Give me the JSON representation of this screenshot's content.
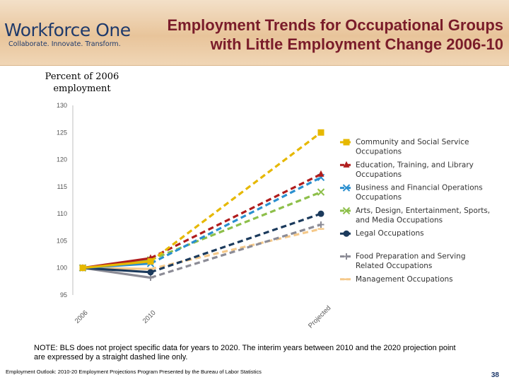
{
  "header": {
    "logo_text": "Workforce One",
    "logo_tagline": "Collaborate. Innovate. Transform.",
    "title_line1": "Employment Trends for Occupational Groups",
    "title_line2": "with Little Employment Change 2006-10"
  },
  "chart_data": {
    "type": "line",
    "title": "Employment Trends for Occupational Groups with Little Employment Change 2006-10",
    "ylabel": "Percent of 2006 employment",
    "xlabel": "",
    "categories": [
      "2006",
      "2010",
      "Projected"
    ],
    "ylim": [
      95,
      130
    ],
    "yticks": [
      95,
      100,
      105,
      110,
      115,
      120,
      125,
      130
    ],
    "grid": false,
    "legend": "right",
    "series": [
      {
        "name": "Community and Social Service Occupations",
        "color": "#e6b800",
        "marker": "square",
        "values": [
          100,
          101.2,
          125
        ]
      },
      {
        "name": "Education, Training, and Library Occupations",
        "color": "#b01c1c",
        "marker": "triangle",
        "values": [
          100,
          101.8,
          117.3
        ]
      },
      {
        "name": "Business and Financial Operations Occupations",
        "color": "#2a8fcf",
        "marker": "x",
        "values": [
          100,
          100.8,
          116.7
        ]
      },
      {
        "name": "Arts, Design, Entertainment, Sports, and Media Occupations",
        "color": "#8dbf4a",
        "marker": "x",
        "values": [
          100,
          101.5,
          114
        ]
      },
      {
        "name": "Legal Occupations",
        "color": "#1b3a5c",
        "marker": "circle",
        "values": [
          100,
          99.2,
          110
        ]
      },
      {
        "name": "Food Preparation and Serving Related Occupations",
        "color": "#8c8c96",
        "marker": "plus",
        "values": [
          100,
          98.2,
          108
        ]
      },
      {
        "name": "Management Occupations",
        "color": "#f5c98a",
        "marker": "dash",
        "values": [
          100,
          99.8,
          107.2
        ]
      }
    ]
  },
  "legend_lines": [
    [
      "Community and Social Service",
      "Occupations"
    ],
    [
      "Education, Training, and Library",
      "Occupations"
    ],
    [
      "Business and Financial Operations",
      "Occupations"
    ],
    [
      "Arts, Design, Entertainment, Sports,",
      "and Media Occupations"
    ],
    [
      "Legal Occupations"
    ],
    [
      "Food Preparation and Serving",
      "Related Occupations"
    ],
    [
      "Management Occupations"
    ]
  ],
  "note": "NOTE:  BLS does not project specific data for years to 2020.  The interim years between 2010 and the 2020 projection point are expressed by a straight dashed line only.",
  "footer": {
    "source": "Employment Outlook: 2010-20 Employment Projections Program Presented by the Bureau of Labor Statistics",
    "page_number": "38"
  }
}
